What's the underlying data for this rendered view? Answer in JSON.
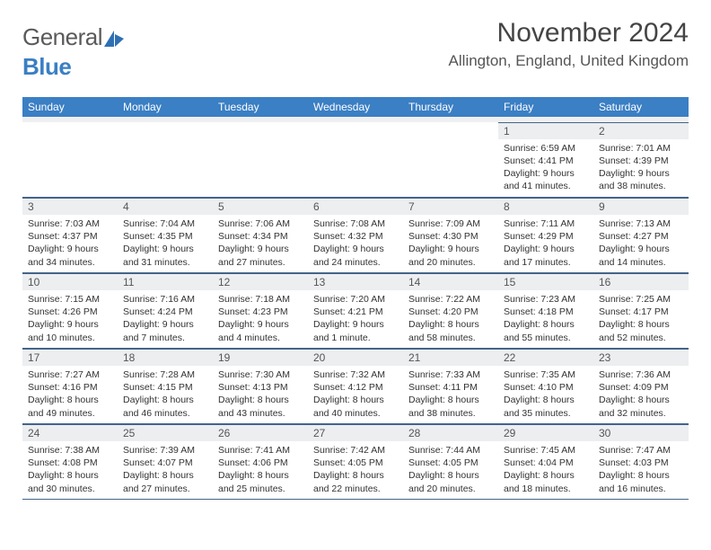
{
  "logo": {
    "general": "General",
    "blue": "Blue"
  },
  "title": "November 2024",
  "location": "Allington, England, United Kingdom",
  "weekdays": [
    "Sunday",
    "Monday",
    "Tuesday",
    "Wednesday",
    "Thursday",
    "Friday",
    "Saturday"
  ],
  "colors": {
    "header_bg": "#3b7fc4",
    "header_fg": "#ffffff",
    "daynum_bg": "#eceef0",
    "rule": "#44648a",
    "text": "#333333",
    "logo_gray": "#5a5a5a",
    "logo_blue": "#3b7fc4"
  },
  "weeks": [
    [
      {
        "n": "",
        "sr": "",
        "ss": "",
        "dl": ""
      },
      {
        "n": "",
        "sr": "",
        "ss": "",
        "dl": ""
      },
      {
        "n": "",
        "sr": "",
        "ss": "",
        "dl": ""
      },
      {
        "n": "",
        "sr": "",
        "ss": "",
        "dl": ""
      },
      {
        "n": "",
        "sr": "",
        "ss": "",
        "dl": ""
      },
      {
        "n": "1",
        "sr": "Sunrise: 6:59 AM",
        "ss": "Sunset: 4:41 PM",
        "dl": "Daylight: 9 hours and 41 minutes."
      },
      {
        "n": "2",
        "sr": "Sunrise: 7:01 AM",
        "ss": "Sunset: 4:39 PM",
        "dl": "Daylight: 9 hours and 38 minutes."
      }
    ],
    [
      {
        "n": "3",
        "sr": "Sunrise: 7:03 AM",
        "ss": "Sunset: 4:37 PM",
        "dl": "Daylight: 9 hours and 34 minutes."
      },
      {
        "n": "4",
        "sr": "Sunrise: 7:04 AM",
        "ss": "Sunset: 4:35 PM",
        "dl": "Daylight: 9 hours and 31 minutes."
      },
      {
        "n": "5",
        "sr": "Sunrise: 7:06 AM",
        "ss": "Sunset: 4:34 PM",
        "dl": "Daylight: 9 hours and 27 minutes."
      },
      {
        "n": "6",
        "sr": "Sunrise: 7:08 AM",
        "ss": "Sunset: 4:32 PM",
        "dl": "Daylight: 9 hours and 24 minutes."
      },
      {
        "n": "7",
        "sr": "Sunrise: 7:09 AM",
        "ss": "Sunset: 4:30 PM",
        "dl": "Daylight: 9 hours and 20 minutes."
      },
      {
        "n": "8",
        "sr": "Sunrise: 7:11 AM",
        "ss": "Sunset: 4:29 PM",
        "dl": "Daylight: 9 hours and 17 minutes."
      },
      {
        "n": "9",
        "sr": "Sunrise: 7:13 AM",
        "ss": "Sunset: 4:27 PM",
        "dl": "Daylight: 9 hours and 14 minutes."
      }
    ],
    [
      {
        "n": "10",
        "sr": "Sunrise: 7:15 AM",
        "ss": "Sunset: 4:26 PM",
        "dl": "Daylight: 9 hours and 10 minutes."
      },
      {
        "n": "11",
        "sr": "Sunrise: 7:16 AM",
        "ss": "Sunset: 4:24 PM",
        "dl": "Daylight: 9 hours and 7 minutes."
      },
      {
        "n": "12",
        "sr": "Sunrise: 7:18 AM",
        "ss": "Sunset: 4:23 PM",
        "dl": "Daylight: 9 hours and 4 minutes."
      },
      {
        "n": "13",
        "sr": "Sunrise: 7:20 AM",
        "ss": "Sunset: 4:21 PM",
        "dl": "Daylight: 9 hours and 1 minute."
      },
      {
        "n": "14",
        "sr": "Sunrise: 7:22 AM",
        "ss": "Sunset: 4:20 PM",
        "dl": "Daylight: 8 hours and 58 minutes."
      },
      {
        "n": "15",
        "sr": "Sunrise: 7:23 AM",
        "ss": "Sunset: 4:18 PM",
        "dl": "Daylight: 8 hours and 55 minutes."
      },
      {
        "n": "16",
        "sr": "Sunrise: 7:25 AM",
        "ss": "Sunset: 4:17 PM",
        "dl": "Daylight: 8 hours and 52 minutes."
      }
    ],
    [
      {
        "n": "17",
        "sr": "Sunrise: 7:27 AM",
        "ss": "Sunset: 4:16 PM",
        "dl": "Daylight: 8 hours and 49 minutes."
      },
      {
        "n": "18",
        "sr": "Sunrise: 7:28 AM",
        "ss": "Sunset: 4:15 PM",
        "dl": "Daylight: 8 hours and 46 minutes."
      },
      {
        "n": "19",
        "sr": "Sunrise: 7:30 AM",
        "ss": "Sunset: 4:13 PM",
        "dl": "Daylight: 8 hours and 43 minutes."
      },
      {
        "n": "20",
        "sr": "Sunrise: 7:32 AM",
        "ss": "Sunset: 4:12 PM",
        "dl": "Daylight: 8 hours and 40 minutes."
      },
      {
        "n": "21",
        "sr": "Sunrise: 7:33 AM",
        "ss": "Sunset: 4:11 PM",
        "dl": "Daylight: 8 hours and 38 minutes."
      },
      {
        "n": "22",
        "sr": "Sunrise: 7:35 AM",
        "ss": "Sunset: 4:10 PM",
        "dl": "Daylight: 8 hours and 35 minutes."
      },
      {
        "n": "23",
        "sr": "Sunrise: 7:36 AM",
        "ss": "Sunset: 4:09 PM",
        "dl": "Daylight: 8 hours and 32 minutes."
      }
    ],
    [
      {
        "n": "24",
        "sr": "Sunrise: 7:38 AM",
        "ss": "Sunset: 4:08 PM",
        "dl": "Daylight: 8 hours and 30 minutes."
      },
      {
        "n": "25",
        "sr": "Sunrise: 7:39 AM",
        "ss": "Sunset: 4:07 PM",
        "dl": "Daylight: 8 hours and 27 minutes."
      },
      {
        "n": "26",
        "sr": "Sunrise: 7:41 AM",
        "ss": "Sunset: 4:06 PM",
        "dl": "Daylight: 8 hours and 25 minutes."
      },
      {
        "n": "27",
        "sr": "Sunrise: 7:42 AM",
        "ss": "Sunset: 4:05 PM",
        "dl": "Daylight: 8 hours and 22 minutes."
      },
      {
        "n": "28",
        "sr": "Sunrise: 7:44 AM",
        "ss": "Sunset: 4:05 PM",
        "dl": "Daylight: 8 hours and 20 minutes."
      },
      {
        "n": "29",
        "sr": "Sunrise: 7:45 AM",
        "ss": "Sunset: 4:04 PM",
        "dl": "Daylight: 8 hours and 18 minutes."
      },
      {
        "n": "30",
        "sr": "Sunrise: 7:47 AM",
        "ss": "Sunset: 4:03 PM",
        "dl": "Daylight: 8 hours and 16 minutes."
      }
    ]
  ]
}
